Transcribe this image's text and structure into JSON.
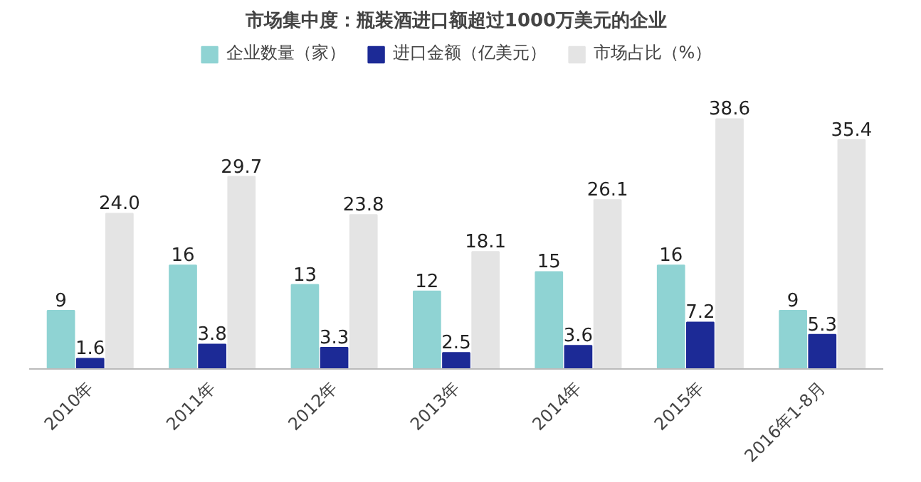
{
  "chart_data": {
    "type": "bar",
    "title": "市场集中度：瓶装酒进口额超过1000万美元的企业",
    "categories": [
      "2010年",
      "2011年",
      "2012年",
      "2013年",
      "2014年",
      "2015年",
      "2016年1-8月"
    ],
    "series": [
      {
        "name": "企业数量（家）",
        "color": "#8fd3d3",
        "values": [
          9,
          16,
          13,
          12,
          15,
          16,
          9
        ],
        "value_labels": [
          "9",
          "16",
          "13",
          "12",
          "15",
          "16",
          "9"
        ]
      },
      {
        "name": "进口金额（亿美元）",
        "color": "#1c2a96",
        "values": [
          1.6,
          3.8,
          3.3,
          2.5,
          3.6,
          7.2,
          5.3
        ],
        "value_labels": [
          "1.6",
          "3.8",
          "3.3",
          "2.5",
          "3.6",
          "7.2",
          "5.3"
        ]
      },
      {
        "name": "市场占比（%）",
        "color": "#e4e4e4",
        "values": [
          24.0,
          29.7,
          23.8,
          18.1,
          26.1,
          38.6,
          35.4
        ],
        "value_labels": [
          "24.0",
          "29.7",
          "23.8",
          "18.1",
          "26.1",
          "38.6",
          "35.4"
        ]
      }
    ],
    "legend": "top",
    "grid": false
  }
}
